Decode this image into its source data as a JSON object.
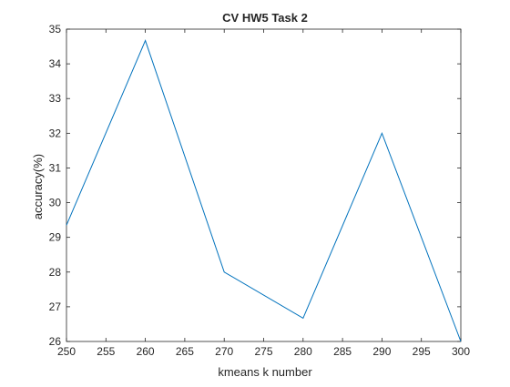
{
  "chart_data": {
    "type": "line",
    "title": "CV HW5 Task 2",
    "xlabel": "kmeans k number",
    "ylabel": "accuracy(%)",
    "xlim": [
      250,
      300
    ],
    "ylim": [
      26,
      35
    ],
    "xticks": [
      250,
      255,
      260,
      265,
      270,
      275,
      280,
      285,
      290,
      295,
      300
    ],
    "yticks": [
      26,
      27,
      28,
      29,
      30,
      31,
      32,
      33,
      34,
      35
    ],
    "grid": false,
    "series": [
      {
        "color": "#0072bd",
        "x": [
          250,
          260,
          270,
          280,
          290,
          300
        ],
        "y": [
          29.35,
          34.67,
          28.0,
          26.67,
          32.0,
          26.0
        ]
      }
    ]
  }
}
